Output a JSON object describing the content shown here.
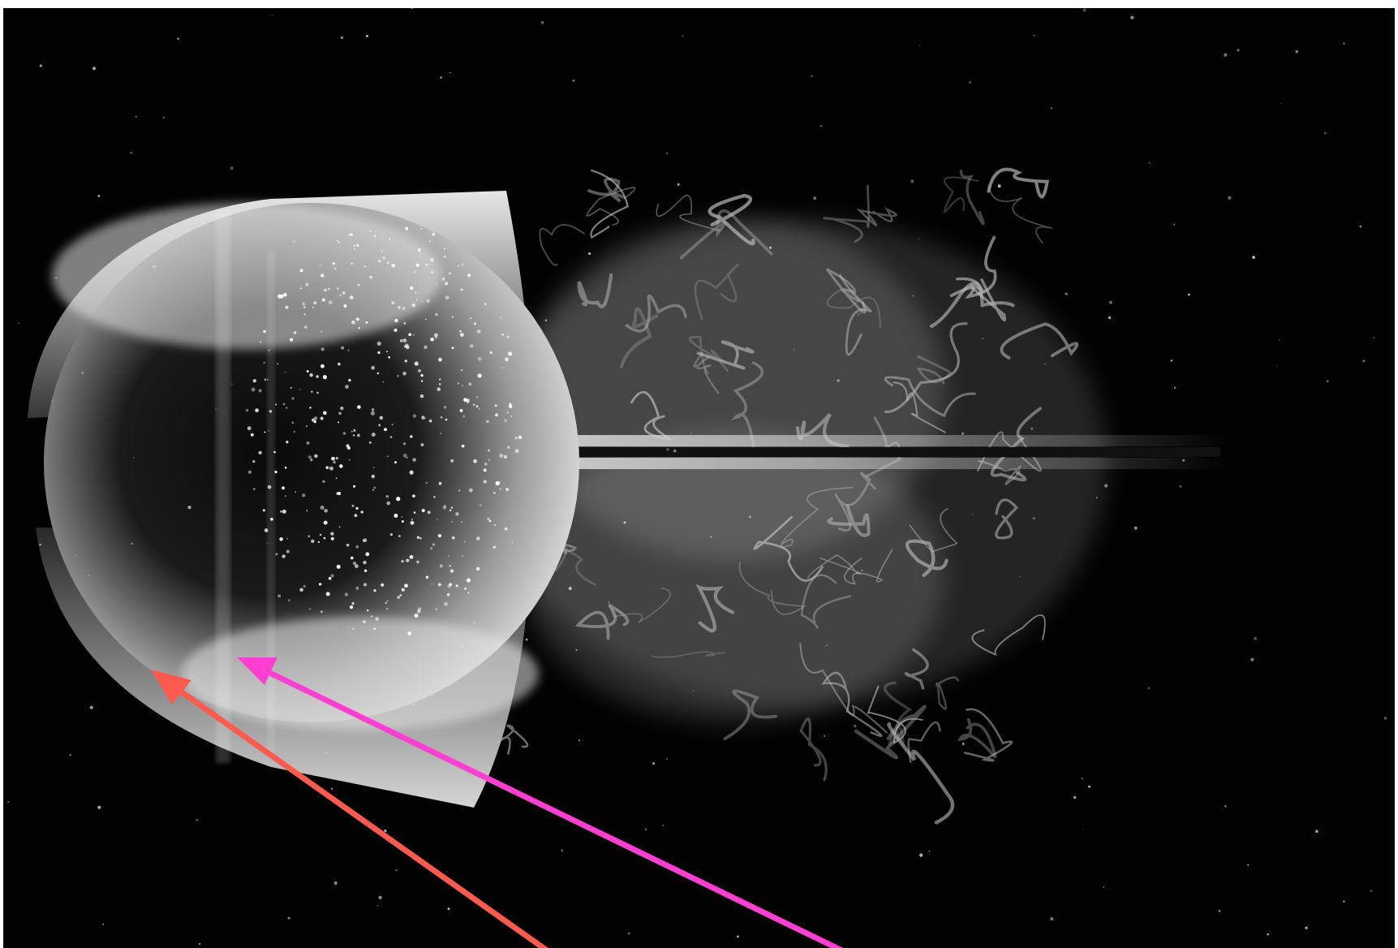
{
  "image": {
    "subject": "",
    "background_color": "#020202",
    "sphere_highlight_color": "#e6e6e6",
    "wake_color": "#bdbdbd"
  },
  "annotations": {
    "arrows": [
      {
        "name": "red-arrow",
        "color": "#ff5a4e"
      },
      {
        "name": "magenta-arrow",
        "color": "#ff3fd2"
      }
    ]
  }
}
